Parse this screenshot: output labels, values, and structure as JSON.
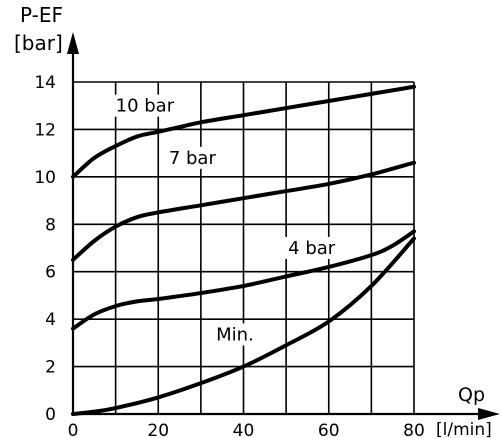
{
  "chart_data": {
    "type": "line",
    "ylabel_line1": "P-EF",
    "ylabel_line2": "[bar]",
    "xlabel": "Qp",
    "xunit": "[l/min]",
    "xlim": [
      0,
      80
    ],
    "ylim": [
      0,
      14
    ],
    "xticks": [
      0,
      20,
      40,
      60,
      80
    ],
    "yticks": [
      0,
      2,
      4,
      6,
      8,
      10,
      12,
      14
    ],
    "grid": true,
    "series": [
      {
        "name": "10 bar",
        "x": [
          0,
          5,
          10,
          15,
          20,
          25,
          30,
          40,
          50,
          60,
          70,
          80
        ],
        "y": [
          10.0,
          10.8,
          11.3,
          11.7,
          11.9,
          12.1,
          12.3,
          12.6,
          12.9,
          13.2,
          13.5,
          13.8
        ]
      },
      {
        "name": "7 bar",
        "x": [
          0,
          5,
          10,
          15,
          20,
          30,
          40,
          50,
          60,
          70,
          80
        ],
        "y": [
          6.5,
          7.3,
          7.9,
          8.3,
          8.5,
          8.8,
          9.1,
          9.4,
          9.7,
          10.1,
          10.6
        ]
      },
      {
        "name": "4 bar",
        "x": [
          0,
          5,
          10,
          15,
          20,
          30,
          40,
          50,
          60,
          70,
          75,
          80
        ],
        "y": [
          3.6,
          4.2,
          4.55,
          4.75,
          4.85,
          5.1,
          5.4,
          5.8,
          6.2,
          6.7,
          7.1,
          7.7
        ]
      },
      {
        "name": "Min.",
        "x": [
          0,
          5,
          10,
          20,
          30,
          40,
          50,
          60,
          70,
          80
        ],
        "y": [
          0,
          0.1,
          0.25,
          0.7,
          1.3,
          2.0,
          2.9,
          3.9,
          5.4,
          7.4
        ]
      }
    ]
  }
}
